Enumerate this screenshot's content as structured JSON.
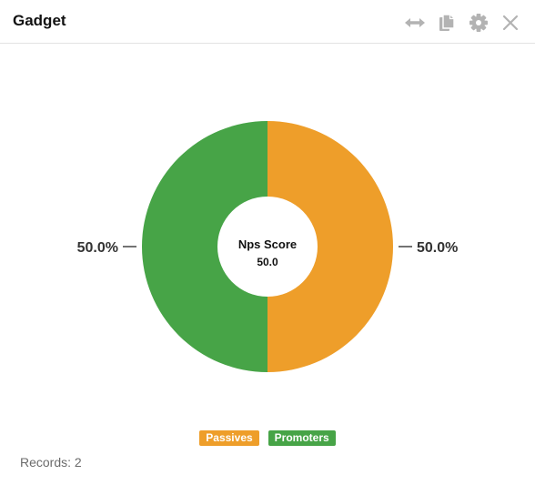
{
  "header": {
    "title": "Gadget",
    "icons": [
      "resize-horizontal-icon",
      "copy-icon",
      "gear-icon",
      "close-icon"
    ]
  },
  "chart_data": {
    "type": "pie",
    "donut": true,
    "center_label": "Nps Score",
    "center_value": "50.0",
    "slices": [
      {
        "name": "Passives",
        "value": 50.0,
        "label": "50.0%",
        "color": "#EE9E2A"
      },
      {
        "name": "Promoters",
        "value": 50.0,
        "label": "50.0%",
        "color": "#47A447"
      }
    ],
    "legend": "bottom"
  },
  "legend": {
    "items": [
      {
        "label": "Passives",
        "color": "#EE9E2A"
      },
      {
        "label": "Promoters",
        "color": "#47A447"
      }
    ]
  },
  "footer": {
    "records_label": "Records: 2"
  },
  "colors": {
    "icon": "#b3b3b3",
    "border": "#e2e2e2"
  }
}
